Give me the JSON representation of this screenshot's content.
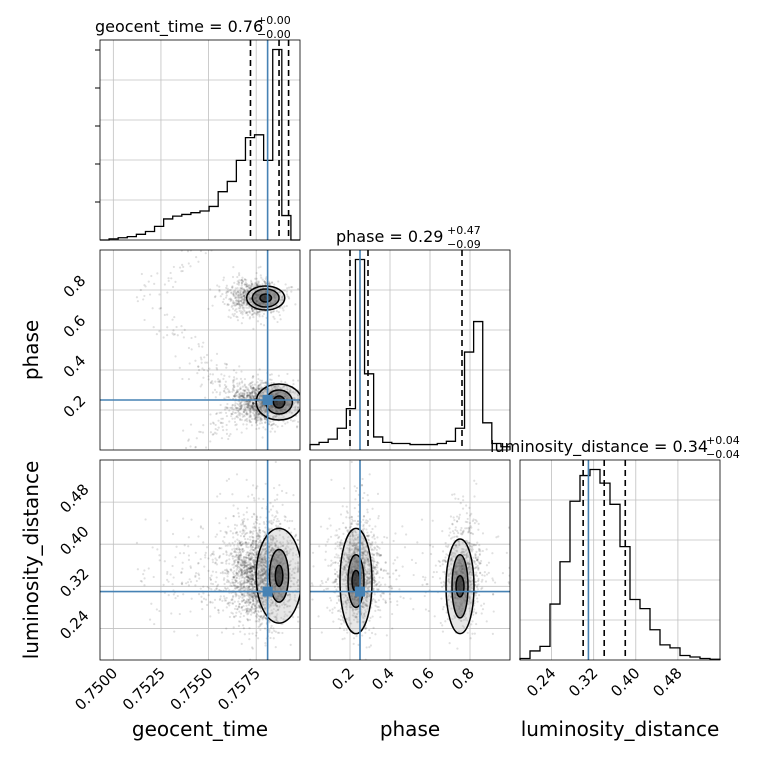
{
  "chart_data": {
    "type": "corner",
    "parameters": [
      "geocent_time",
      "phase",
      "luminosity_distance"
    ],
    "truth": {
      "geocent_time": 0.7581,
      "phase": 0.25,
      "luminosity_distance": 0.31
    },
    "accent_color": "#4682b4",
    "titles": [
      {
        "name": "geocent_time = 0.76",
        "sup": "+0.00",
        "sub": "−0.00"
      },
      {
        "name": "phase = 0.29",
        "sup": "+0.47",
        "sub": "−0.09"
      },
      {
        "name": "luminosity_distance = 0.34",
        "sup": "+0.04",
        "sub": "−0.04"
      }
    ],
    "axis_labels": {
      "x": [
        "geocent_time",
        "phase",
        "luminosity_distance"
      ],
      "y": [
        "phase",
        "luminosity_distance"
      ]
    },
    "axes": {
      "geocent_time": {
        "range": [
          0.7493,
          0.7598
        ],
        "ticks": [
          0.75,
          0.7525,
          0.755,
          0.7575
        ],
        "tick_labels": [
          "0.7500",
          "0.7525",
          "0.7550",
          "0.7575"
        ]
      },
      "phase": {
        "range": [
          0.0,
          1.0
        ],
        "ticks": [
          0.2,
          0.4,
          0.6,
          0.8
        ],
        "tick_labels": [
          "0.2",
          "0.4",
          "0.6",
          "0.8"
        ]
      },
      "luminosity_distance": {
        "range": [
          0.18,
          0.56
        ],
        "ticks": [
          0.24,
          0.32,
          0.4,
          0.48
        ],
        "tick_labels": [
          "0.24",
          "0.32",
          "0.40",
          "0.48"
        ]
      }
    },
    "histograms": {
      "geocent_time": {
        "edges": [
          0.7493,
          0.7598
        ],
        "counts": [
          0,
          0.2,
          0.4,
          0.6,
          1,
          1.5,
          2.4,
          3.7,
          4.2,
          4.5,
          4.8,
          5.1,
          5.9,
          8.5,
          10.3,
          14,
          18,
          18.5,
          14,
          33.5,
          4.3,
          0
        ],
        "quantiles": [
          0.7572,
          0.7587,
          0.7592
        ]
      },
      "phase": {
        "edges": [
          0.0,
          1.0
        ],
        "counts": [
          0.5,
          0.7,
          1.0,
          2.0,
          3.8,
          17.5,
          7.0,
          1.2,
          0.7,
          0.6,
          0.6,
          0.5,
          0.5,
          0.5,
          0.6,
          0.8,
          2.0,
          9.0,
          11.8,
          2.5,
          0.6,
          0.3
        ],
        "quantiles": [
          0.2,
          0.29,
          0.76
        ]
      },
      "luminosity_distance": {
        "edges": [
          0.18,
          0.56
        ],
        "counts": [
          0.1,
          0.6,
          0.9,
          3.7,
          6.5,
          10.5,
          12.2,
          12.6,
          11.7,
          10.3,
          7.5,
          4.0,
          3.4,
          2.0,
          1.0,
          0.8,
          0.3,
          0.2,
          0.1,
          0.05
        ],
        "quantiles": [
          0.3,
          0.34,
          0.38
        ]
      }
    },
    "grid": true
  }
}
